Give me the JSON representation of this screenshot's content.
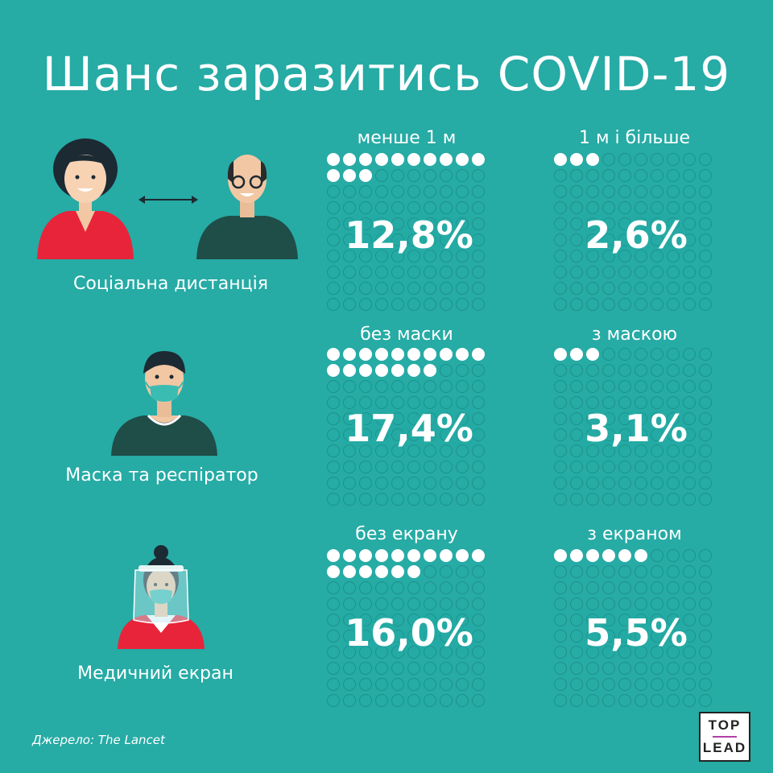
{
  "title": "Шанс заразитись COVID-19",
  "rows": [
    {
      "caption": "Соціальна дистанція",
      "illustration": "two-people-distance-icon",
      "panels": [
        {
          "label": "менше 1 м",
          "value": 12.8,
          "value_text": "12,8%"
        },
        {
          "label": "1 м і більше",
          "value": 2.6,
          "value_text": "2,6%"
        }
      ]
    },
    {
      "caption": "Маска та респіратор",
      "illustration": "man-with-mask-icon",
      "panels": [
        {
          "label": "без маски",
          "value": 17.4,
          "value_text": "17,4%"
        },
        {
          "label": "з маскою",
          "value": 3.1,
          "value_text": "3,1%"
        }
      ]
    },
    {
      "caption": "Медичний екран",
      "illustration": "woman-with-face-shield-icon",
      "panels": [
        {
          "label": "без екрану",
          "value": 16.0,
          "value_text": "16,0%"
        },
        {
          "label": "з екраном",
          "value": 5.5,
          "value_text": "5,5%"
        }
      ]
    }
  ],
  "source": "Джерело: The Lancet",
  "logo": {
    "line1": "TOP",
    "line2": "LEAD"
  },
  "colors": {
    "background": "#26aba5",
    "dot_filled": "#ffffff",
    "dot_outline": "#1e918b",
    "shirt_red": "#e8243a",
    "shirt_dark": "#1f4d48"
  },
  "chart_data": {
    "type": "waffle",
    "title": "Шанс заразитись COVID-19",
    "grid": "10x10 (100 circles)",
    "categories": [
      "менше 1 м",
      "1 м і більше",
      "без маски",
      "з маскою",
      "без екрану",
      "з екраном"
    ],
    "values": [
      12.8,
      2.6,
      17.4,
      3.1,
      16.0,
      5.5
    ],
    "unit": "%"
  }
}
